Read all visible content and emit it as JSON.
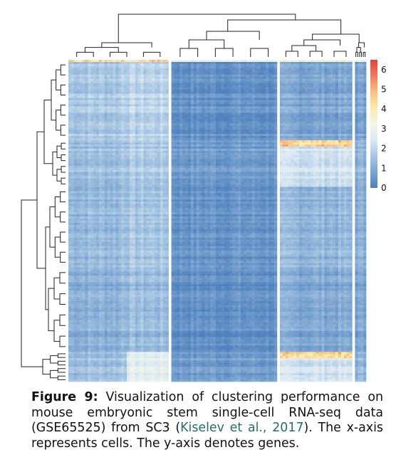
{
  "figure": {
    "type": "heatmap",
    "legend": {
      "ticks": [
        "0",
        "1",
        "2",
        "3",
        "4",
        "5",
        "6"
      ],
      "min": 0,
      "max": 6.5,
      "colors": [
        "#4f81bd",
        "#7aa3d0",
        "#a9c7e3",
        "#dbe9f4",
        "#f3f6e8",
        "#fde9a8",
        "#f9c07e",
        "#ef7d5a",
        "#e0443a"
      ]
    },
    "column_blocks": [
      {
        "cells": 36,
        "level": "high-first-rows"
      },
      {
        "cells": 38,
        "level": "low"
      },
      {
        "cells": 26,
        "level": "mid"
      },
      {
        "cells": 4,
        "level": "mid"
      }
    ],
    "row_blocks": [
      {
        "genes": 38,
        "pattern": "block1-high"
      },
      {
        "genes": 22,
        "pattern": "block3-high"
      },
      {
        "genes": 38,
        "pattern": "block1-med"
      },
      {
        "genes": 40,
        "pattern": "mostly-low"
      },
      {
        "genes": 14,
        "pattern": "block3-high"
      }
    ]
  },
  "caption": {
    "label": "Figure 9:",
    "text_before": "Visualization of clustering performance on mouse embryonic stem single-cell RNA-seq data (GSE65525) from SC3 (",
    "citation": "Kiselev et al., 2017",
    "text_after": "). The x-axis represents cells. The y-axis denotes genes."
  }
}
